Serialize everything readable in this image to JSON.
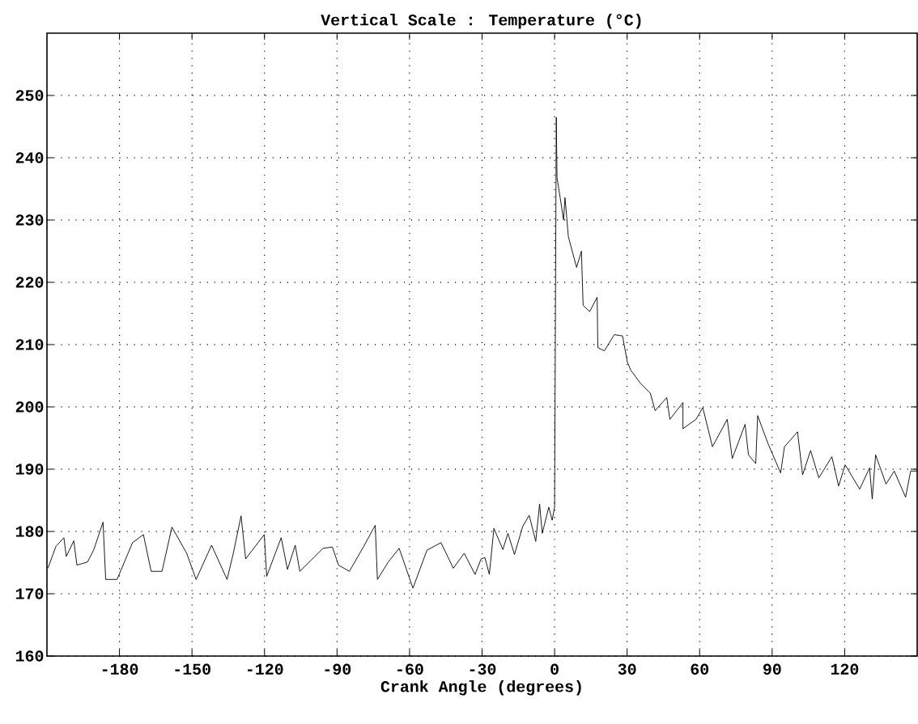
{
  "chart_data": {
    "type": "line",
    "title": "Vertical Scale : Temperature (°C)",
    "xlabel": "Crank Angle (degrees)",
    "xlim": [
      -210,
      150
    ],
    "ylim": [
      160,
      260
    ],
    "xticks": [
      -180,
      -150,
      -120,
      -90,
      -60,
      -30,
      0,
      30,
      60,
      90,
      120
    ],
    "yticks": [
      160,
      170,
      180,
      190,
      200,
      210,
      220,
      230,
      240,
      250
    ],
    "grid": true,
    "marker": "none",
    "line_style": "solid",
    "series": [
      {
        "color": "#000000",
        "x": [
          -209.6,
          -206.3,
          -203,
          -202,
          -198.9,
          -197.6,
          -193.2,
          -190.6,
          -186.8,
          -185.7,
          -181,
          -174.6,
          -170.1,
          -166.9,
          -162.4,
          -158.3,
          -152.2,
          -148.3,
          -141.9,
          -135.5,
          -132.9,
          -129.7,
          -127.8,
          -120.1,
          -119.1,
          -113.1,
          -110.5,
          -107.3,
          -105.4,
          -95.8,
          -91.9,
          -89.4,
          -84.9,
          -79.1,
          -74.2,
          -73.3,
          -68.8,
          -64.3,
          -58.6,
          -52.8,
          -47.0,
          -41.9,
          -37.4,
          -32.9,
          -30.4,
          -28.8,
          -27.0,
          -25.1,
          -21.4,
          -19.3,
          -16.6,
          -13.2,
          -10.5,
          -7.8,
          -6.2,
          -5.1,
          -2.4,
          -1.0,
          0.0,
          0.7,
          1.0,
          2.3,
          3.7,
          4.3,
          5.7,
          9.1,
          11.1,
          11.8,
          14.5,
          17.6,
          17.9,
          20.6,
          24.7,
          28.1,
          30.1,
          31.5,
          35.5,
          39.6,
          41.6,
          46.4,
          47.7,
          53.1,
          53.1,
          58.5,
          61.3,
          65.3,
          71.4,
          73.5,
          78.8,
          80.2,
          83.2,
          84,
          88.3,
          93.5,
          95.1,
          100.5,
          102.6,
          105.9,
          109.3,
          114.7,
          117.5,
          120.2,
          126.2,
          130.3,
          131.4,
          132.8,
          137.1,
          140.5,
          145.2,
          147.3,
          150
        ],
        "values": [
          174.1,
          177.6,
          179,
          176,
          178.5,
          174.6,
          175.1,
          177.1,
          181.5,
          172.3,
          172.3,
          178.2,
          179.5,
          173.6,
          173.6,
          180.7,
          176.5,
          172.3,
          177.8,
          172.3,
          176.5,
          182.5,
          175.6,
          179.5,
          172.8,
          179,
          173.9,
          177.8,
          173.6,
          177.3,
          177.5,
          174.6,
          173.6,
          177.5,
          181,
          172.3,
          175.1,
          177.3,
          170.9,
          177,
          178.2,
          174.1,
          176.5,
          173.1,
          175.6,
          175.8,
          173.1,
          180.5,
          177.1,
          179.7,
          176.3,
          180.8,
          182.6,
          178.4,
          184.4,
          179.7,
          183.9,
          181.8,
          183.9,
          246.5,
          236.8,
          233.6,
          230,
          233.6,
          227.3,
          222.4,
          225,
          216.3,
          215.3,
          217.6,
          209.5,
          209,
          211.6,
          211.4,
          207.2,
          205.9,
          203.8,
          202.2,
          199.4,
          201.5,
          198,
          200.7,
          196.5,
          198,
          199.9,
          193.6,
          198,
          191.7,
          197.2,
          192.3,
          190.9,
          198.6,
          194.1,
          189.4,
          193.6,
          196,
          189.1,
          193,
          188.6,
          192,
          187.3,
          190.7,
          186.8,
          190.2,
          185.2,
          192.3,
          187.6,
          189.7,
          185.5,
          189.7,
          189.7
        ]
      }
    ]
  }
}
